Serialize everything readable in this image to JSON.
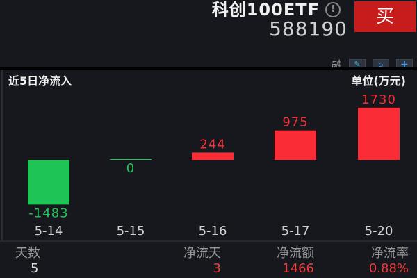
{
  "header": {
    "title": "科创100ETF",
    "info_icon": "info-circle-icon",
    "code": "588190",
    "buy_label": "买",
    "buy_color": "#c71c1c"
  },
  "toolbar": {
    "rong_label": "融",
    "icons": [
      "pencil-icon",
      "bell-icon",
      "plus-icon"
    ]
  },
  "panel": {
    "title": "近5日净流入",
    "unit": "单位(万元)"
  },
  "chart_data": {
    "type": "bar",
    "categories": [
      "5-14",
      "5-15",
      "5-16",
      "5-17",
      "5-20"
    ],
    "values": [
      -1483,
      0,
      244,
      975,
      1730
    ],
    "value_labels": [
      "-1483",
      "0",
      "244",
      "975",
      "1730"
    ],
    "positive_color": "#fa2d37",
    "negative_color": "#1fc456"
  },
  "stats": {
    "labels": [
      "天数",
      "净流天",
      "净流额",
      "净流率"
    ],
    "values": [
      "5",
      "3",
      "1466",
      "0.88%"
    ],
    "value_color": "#f23a3a"
  }
}
